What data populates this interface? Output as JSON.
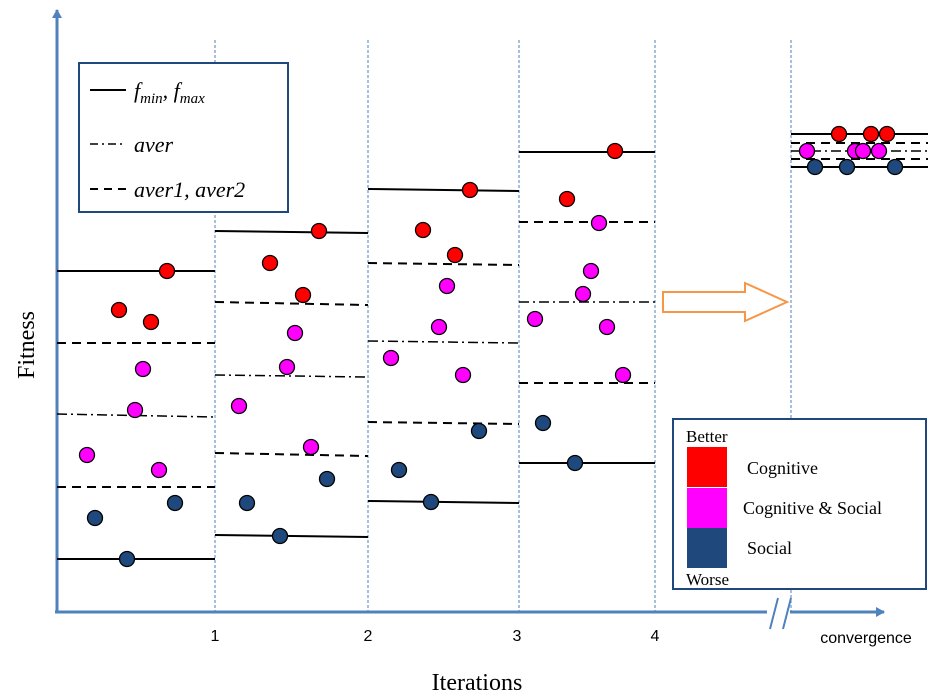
{
  "axes": {
    "y_label": "Fitness",
    "x_label": "Iterations",
    "x_ticks": [
      "1",
      "2",
      "3",
      "4"
    ],
    "x_end_label": "convergence"
  },
  "legend_lines": {
    "solid": "f_min, f_max",
    "solid_parts": {
      "f1": "f",
      "sub1": "min",
      "sep": ", ",
      "f2": "f",
      "sub2": "max"
    },
    "dashdot": "aver",
    "dashed": "aver1, aver2"
  },
  "legend_groups": {
    "top_label": "Better",
    "bottom_label": "Worse",
    "items": [
      {
        "label": "Cognitive",
        "color": "#ff0000"
      },
      {
        "label": "Cognitive & Social",
        "color": "#ff00ff"
      },
      {
        "label": "Social",
        "color": "#1f497d"
      }
    ]
  },
  "colors": {
    "axis": "#4f81bd",
    "divider": "#4f81bd",
    "cognitive": "#ff0000",
    "cognitive_social": "#ff00ff",
    "social": "#1f497d",
    "arrow": "#f79646"
  }
}
